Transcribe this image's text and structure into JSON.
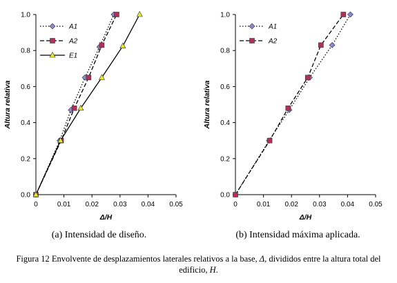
{
  "chart_data": [
    {
      "type": "line",
      "xlabel": "Δ/H",
      "ylabel": "Altura relativa",
      "xlim": [
        0,
        0.05
      ],
      "ylim": [
        0,
        1.0
      ],
      "xticks": [
        "0",
        "0.01",
        "0.02",
        "0.03",
        "0.04",
        "0.05"
      ],
      "yticks": [
        "0.0",
        "0.2",
        "0.4",
        "0.6",
        "0.8",
        "1.0"
      ],
      "grid": false,
      "legend_position": "top-left",
      "series": [
        {
          "name": "A1",
          "style": "dotted",
          "marker": "diamond",
          "marker_color": "#8a8ad0",
          "x": [
            0,
            0.0085,
            0.0125,
            0.0175,
            0.0227,
            0.0278
          ],
          "y": [
            0,
            0.3,
            0.47,
            0.65,
            0.82,
            1.0
          ]
        },
        {
          "name": "A2",
          "style": "dashed",
          "marker": "square",
          "marker_color": "#b0305a",
          "x": [
            0,
            0.009,
            0.0137,
            0.0188,
            0.0235,
            0.0288
          ],
          "y": [
            0,
            0.3,
            0.48,
            0.65,
            0.83,
            1.0
          ]
        },
        {
          "name": "E1",
          "style": "solid",
          "marker": "triangle",
          "marker_color": "#e8e832",
          "x": [
            0,
            0.0088,
            0.016,
            0.0235,
            0.031,
            0.037
          ],
          "y": [
            0,
            0.3,
            0.48,
            0.65,
            0.825,
            1.0
          ]
        }
      ]
    },
    {
      "type": "line",
      "xlabel": "Δ/H",
      "ylabel": "Altura relativa",
      "xlim": [
        0,
        0.05
      ],
      "ylim": [
        0,
        1.0
      ],
      "xticks": [
        "0",
        "0.01",
        "0.02",
        "0.03",
        "0.04",
        "0.05"
      ],
      "yticks": [
        "0.0",
        "0.2",
        "0.4",
        "0.6",
        "0.8",
        "1.0"
      ],
      "grid": false,
      "legend_position": "top-left",
      "series": [
        {
          "name": "A1",
          "style": "dotted",
          "marker": "diamond",
          "marker_color": "#8a8ad0",
          "x": [
            0,
            0.012,
            0.0192,
            0.0265,
            0.0345,
            0.041
          ],
          "y": [
            0,
            0.3,
            0.47,
            0.65,
            0.83,
            1.0
          ]
        },
        {
          "name": "A2",
          "style": "dashed",
          "marker": "square",
          "marker_color": "#b0305a",
          "x": [
            0,
            0.0122,
            0.0188,
            0.0258,
            0.0305,
            0.0385
          ],
          "y": [
            0,
            0.3,
            0.48,
            0.65,
            0.83,
            1.0
          ]
        }
      ]
    }
  ],
  "captions": {
    "panel_a": "(a) Intensidad de diseño.",
    "panel_b": "(b) Intensidad máxima aplicada.",
    "figure_line1_a": "Figura 12 Envolvente de desplazamientos  laterales relativos a la base, ",
    "figure_line1_symbol": "Δ",
    "figure_line1_b": ", divididos entre la altura total del",
    "figure_line2_a": "edificio, ",
    "figure_line2_symbol": "H",
    "figure_line2_b": "."
  }
}
